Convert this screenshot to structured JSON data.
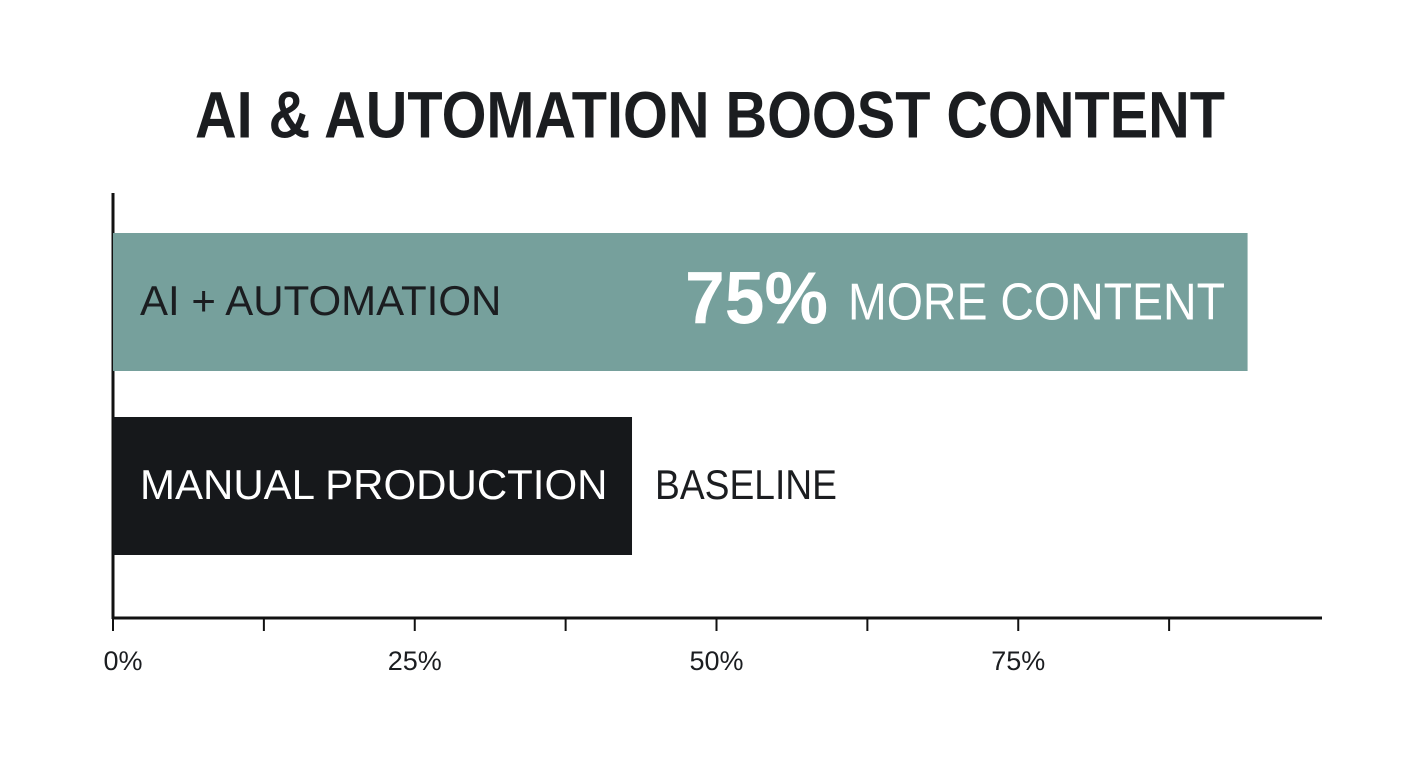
{
  "chart_data": {
    "type": "barh",
    "title": "AI & AUTOMATION BOOST CONTENT",
    "categories": [
      "AI + AUTOMATION",
      "MANUAL PRODUCTION"
    ],
    "series": [
      {
        "colors": [
          "#76a09c",
          "#16181b"
        ],
        "values": [
          94,
          43
        ]
      }
    ],
    "xlim": [
      0,
      100
    ],
    "xticks": [
      {
        "value": 0,
        "label": "0%"
      },
      {
        "value": 25,
        "label": "25%"
      },
      {
        "value": 50,
        "label": "50%"
      },
      {
        "value": 75,
        "label": "75%"
      }
    ],
    "xminorticks": [
      12.5,
      37.5,
      62.5,
      87.5
    ],
    "annotations": [
      "75%",
      "MORE CONTENT",
      "BASELINE"
    ]
  }
}
